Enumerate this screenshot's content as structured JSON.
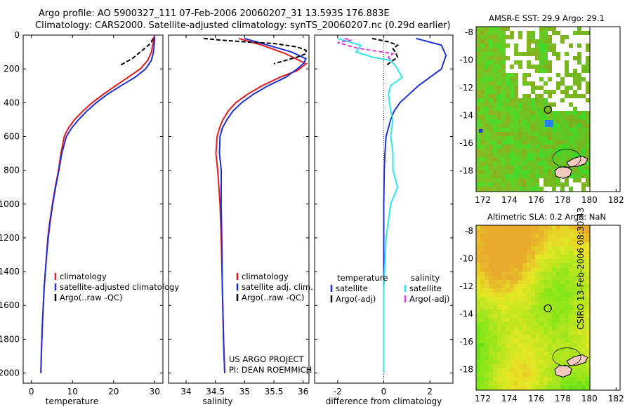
{
  "header": {
    "line1": "Argo profile: AO 5900327_111 07-Feb-2006 20060207_31 13.593S 176.883E",
    "line2": "Climatology: CARS2000. Satellite-adjusted climatology: synTS_20060207.nc (0.29d earlier)"
  },
  "side_label": "CSIRO 13-Feb-2006 08:30:43",
  "project": {
    "line1": "US ARGO PROJECT",
    "line2": "PI: DEAN ROEMMICH"
  },
  "colors": {
    "red": "#e41a1c",
    "blue": "#1f2fd6",
    "black": "#000000",
    "cyan": "#2ee6e6",
    "magenta": "#e040e0"
  },
  "chart_data": [
    {
      "id": "temperature",
      "type": "line",
      "xlabel": "temperature",
      "ylabel": "",
      "xlim": [
        -2,
        32
      ],
      "ylim": [
        2060,
        0
      ],
      "xticks": [
        0,
        10,
        20,
        30
      ],
      "yticks": [
        0,
        200,
        400,
        600,
        800,
        1000,
        1200,
        1400,
        1600,
        1800,
        2000
      ],
      "legend": {
        "position": "lower-center",
        "items": [
          {
            "label": "climatology",
            "color": "#e41a1c"
          },
          {
            "label": "satellite-adjusted climatology",
            "color": "#1f2fd6"
          },
          {
            "label": "Argo(..raw -QC)",
            "color": "#000000"
          }
        ]
      },
      "series": [
        {
          "name": "climatology",
          "color": "#e41a1c",
          "style": "solid",
          "points": [
            [
              29.8,
              10
            ],
            [
              29.6,
              50
            ],
            [
              29.2,
              100
            ],
            [
              28.3,
              150
            ],
            [
              26.5,
              200
            ],
            [
              23.5,
              250
            ],
            [
              20.5,
              300
            ],
            [
              17.5,
              350
            ],
            [
              14.8,
              400
            ],
            [
              12.5,
              450
            ],
            [
              10.5,
              500
            ],
            [
              9.0,
              550
            ],
            [
              8.0,
              600
            ],
            [
              7.2,
              700
            ],
            [
              6.6,
              800
            ],
            [
              5.8,
              900
            ],
            [
              5.1,
              1000
            ],
            [
              4.5,
              1100
            ],
            [
              4.0,
              1200
            ],
            [
              3.7,
              1300
            ],
            [
              3.4,
              1400
            ],
            [
              3.1,
              1500
            ],
            [
              2.9,
              1600
            ],
            [
              2.7,
              1700
            ],
            [
              2.55,
              1800
            ],
            [
              2.4,
              1900
            ],
            [
              2.3,
              2000
            ]
          ]
        },
        {
          "name": "satellite-adjusted climatology",
          "color": "#1f2fd6",
          "style": "solid",
          "points": [
            [
              30.0,
              10
            ],
            [
              29.9,
              50
            ],
            [
              29.7,
              100
            ],
            [
              29.2,
              150
            ],
            [
              27.8,
              200
            ],
            [
              25.2,
              250
            ],
            [
              21.8,
              300
            ],
            [
              18.5,
              350
            ],
            [
              15.8,
              400
            ],
            [
              13.5,
              450
            ],
            [
              11.5,
              500
            ],
            [
              9.8,
              550
            ],
            [
              8.5,
              600
            ],
            [
              7.4,
              700
            ],
            [
              6.7,
              800
            ],
            [
              5.9,
              900
            ],
            [
              5.2,
              1000
            ],
            [
              4.6,
              1100
            ],
            [
              4.1,
              1200
            ],
            [
              3.7,
              1300
            ],
            [
              3.4,
              1400
            ],
            [
              3.1,
              1500
            ],
            [
              2.9,
              1600
            ],
            [
              2.7,
              1700
            ],
            [
              2.55,
              1800
            ],
            [
              2.4,
              1900
            ],
            [
              2.3,
              2000
            ]
          ]
        },
        {
          "name": "Argo(..raw -QC)",
          "color": "#000000",
          "style": "dashed",
          "points": [
            [
              29.6,
              20
            ],
            [
              29.2,
              40
            ],
            [
              28.5,
              60
            ],
            [
              27.5,
              80
            ],
            [
              26.5,
              100
            ],
            [
              25.5,
              120
            ],
            [
              24.5,
              140
            ],
            [
              23.0,
              160
            ],
            [
              21.5,
              180
            ]
          ]
        }
      ]
    },
    {
      "id": "salinity",
      "type": "line",
      "xlabel": "salinity",
      "ylabel": "",
      "xlim": [
        33.7,
        36.1
      ],
      "ylim": [
        2060,
        0
      ],
      "xticks": [
        34,
        34.5,
        35,
        35.5,
        36
      ],
      "legend": {
        "position": "lower-center",
        "items": [
          {
            "label": "climatology",
            "color": "#e41a1c"
          },
          {
            "label": "satellite adj. clim.",
            "color": "#1f2fd6"
          },
          {
            "label": "Argo(..raw -QC)",
            "color": "#000000"
          }
        ]
      },
      "series": [
        {
          "name": "climatology",
          "color": "#e41a1c",
          "style": "solid",
          "points": [
            [
              34.9,
              20
            ],
            [
              35.3,
              60
            ],
            [
              35.7,
              110
            ],
            [
              36.05,
              170
            ],
            [
              35.9,
              210
            ],
            [
              35.6,
              250
            ],
            [
              35.3,
              300
            ],
            [
              35.05,
              350
            ],
            [
              34.85,
              400
            ],
            [
              34.72,
              450
            ],
            [
              34.63,
              500
            ],
            [
              34.57,
              550
            ],
            [
              34.53,
              600
            ],
            [
              34.51,
              700
            ],
            [
              34.54,
              800
            ],
            [
              34.56,
              900
            ],
            [
              34.58,
              1000
            ],
            [
              34.6,
              1200
            ],
            [
              34.62,
              1500
            ],
            [
              34.64,
              1800
            ],
            [
              34.66,
              2000
            ]
          ]
        },
        {
          "name": "satellite adj. clim.",
          "color": "#1f2fd6",
          "style": "solid",
          "points": [
            [
              35.0,
              20
            ],
            [
              35.4,
              60
            ],
            [
              35.8,
              100
            ],
            [
              36.05,
              140
            ],
            [
              36.0,
              170
            ],
            [
              35.9,
              200
            ],
            [
              35.7,
              250
            ],
            [
              35.4,
              300
            ],
            [
              35.15,
              350
            ],
            [
              34.95,
              400
            ],
            [
              34.8,
              450
            ],
            [
              34.7,
              500
            ],
            [
              34.62,
              550
            ],
            [
              34.58,
              600
            ],
            [
              34.57,
              700
            ],
            [
              34.6,
              800
            ],
            [
              34.6,
              900
            ],
            [
              34.6,
              1000
            ],
            [
              34.61,
              1200
            ],
            [
              34.62,
              1500
            ],
            [
              34.64,
              1800
            ],
            [
              34.66,
              2000
            ]
          ]
        },
        {
          "name": "Argo(..raw -QC)",
          "color": "#000000",
          "style": "dashed",
          "points": [
            [
              34.3,
              20
            ],
            [
              34.6,
              30
            ],
            [
              35.0,
              40
            ],
            [
              35.5,
              50
            ],
            [
              35.9,
              70
            ],
            [
              36.05,
              90
            ],
            [
              36.05,
              110
            ],
            [
              35.9,
              130
            ],
            [
              35.7,
              150
            ],
            [
              35.5,
              170
            ]
          ]
        }
      ]
    },
    {
      "id": "difference",
      "type": "line",
      "xlabel": "difference from climatology",
      "ylabel": "",
      "xlim": [
        -3.0,
        3.0
      ],
      "ylim": [
        2060,
        0
      ],
      "xticks": [
        -2,
        0,
        2
      ],
      "legend": {
        "position": "lower-center",
        "items": [
          {
            "label": "temperature",
            "color": ""
          },
          {
            "label": "salinity",
            "color": ""
          },
          {
            "label": "satellite",
            "color": "#1f2fd6"
          },
          {
            "label": "satellite",
            "color": "#2ee6e6"
          },
          {
            "label": "Argo(-adj)",
            "color": "#000000"
          },
          {
            "label": "Argo(-adj)",
            "color": "#e040e0"
          }
        ]
      },
      "series": [
        {
          "name": "temperature satellite",
          "color": "#1f2fd6",
          "style": "solid",
          "points": [
            [
              1.4,
              20
            ],
            [
              2.5,
              60
            ],
            [
              2.7,
              120
            ],
            [
              2.5,
              200
            ],
            [
              2.0,
              250
            ],
            [
              1.5,
              300
            ],
            [
              1.1,
              350
            ],
            [
              0.7,
              400
            ],
            [
              0.45,
              450
            ],
            [
              0.3,
              500
            ],
            [
              0.2,
              550
            ],
            [
              0.1,
              600
            ],
            [
              0.05,
              700
            ],
            [
              0.02,
              800
            ],
            [
              0.0,
              1000
            ],
            [
              0.0,
              1500
            ],
            [
              0.0,
              2000
            ]
          ]
        },
        {
          "name": "salinity satellite",
          "color": "#2ee6e6",
          "style": "solid",
          "points": [
            [
              -2.0,
              20
            ],
            [
              -1.0,
              60
            ],
            [
              -1.2,
              100
            ],
            [
              -0.5,
              130
            ],
            [
              0.3,
              150
            ],
            [
              0.5,
              180
            ],
            [
              0.8,
              250
            ],
            [
              0.3,
              300
            ],
            [
              0.2,
              350
            ],
            [
              0.3,
              450
            ],
            [
              0.4,
              500
            ],
            [
              0.3,
              600
            ],
            [
              0.4,
              700
            ],
            [
              0.4,
              800
            ],
            [
              0.5,
              850
            ],
            [
              0.6,
              900
            ],
            [
              0.3,
              1000
            ],
            [
              0.1,
              1200
            ],
            [
              0.0,
              1500
            ],
            [
              0.0,
              2000
            ]
          ]
        },
        {
          "name": "temperature Argo(-adj)",
          "color": "#000000",
          "style": "dashed",
          "points": [
            [
              -0.5,
              20
            ],
            [
              0.2,
              40
            ],
            [
              0.6,
              60
            ],
            [
              0.4,
              80
            ],
            [
              0.5,
              100
            ],
            [
              0.6,
              130
            ],
            [
              0.3,
              160
            ],
            [
              0.1,
              180
            ]
          ]
        },
        {
          "name": "salinity Argo(-adj)",
          "color": "#e040e0",
          "style": "dashed",
          "points": [
            [
              -1.7,
              20
            ],
            [
              -1.4,
              30
            ],
            [
              -2.0,
              45
            ],
            [
              -1.6,
              60
            ],
            [
              -1.2,
              75
            ],
            [
              -0.8,
              85
            ],
            [
              -0.3,
              95
            ],
            [
              0.4,
              110
            ],
            [
              0.2,
              130
            ],
            [
              0.3,
              150
            ]
          ]
        }
      ]
    },
    {
      "id": "sst-map",
      "type": "heatmap",
      "title": "AMSR-E SST: 29.9  Argo: 29.1",
      "xticks": [
        172,
        174,
        176,
        178,
        180,
        182
      ],
      "yticks": [
        -8,
        -10,
        -12,
        -14,
        -16,
        -18
      ],
      "xlim": [
        171.5,
        182.3
      ],
      "ylim": [
        -19.5,
        -7.6
      ],
      "marker": {
        "lon": 176.883,
        "lat": -13.593
      }
    },
    {
      "id": "sla-map",
      "type": "heatmap",
      "title": "Altimetric SLA: 0.2  Argo: NaN",
      "xticks": [
        172,
        174,
        176,
        178,
        180,
        182
      ],
      "yticks": [
        -8,
        -10,
        -12,
        -14,
        -16,
        -18
      ],
      "xlim": [
        171.5,
        182.3
      ],
      "ylim": [
        -19.5,
        -7.6
      ],
      "marker": {
        "lon": 176.883,
        "lat": -13.593
      }
    }
  ]
}
